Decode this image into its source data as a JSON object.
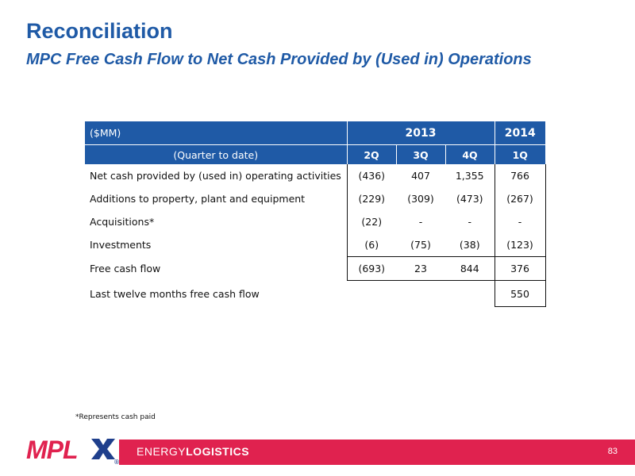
{
  "header": {
    "title": "Reconciliation",
    "subtitle": "MPC Free Cash Flow to Net Cash Provided by (Used in) Operations"
  },
  "table": {
    "unit_label": "($MM)",
    "years": [
      "2013",
      "2014"
    ],
    "period_label": "(Quarter to date)",
    "quarters": [
      "2Q",
      "3Q",
      "4Q",
      "1Q"
    ],
    "rows": [
      {
        "label": "Net cash provided by (used in) operating activities",
        "values": [
          "(436)",
          "407",
          "1,355",
          "766"
        ]
      },
      {
        "label": "Additions to property, plant and equipment",
        "values": [
          "(229)",
          "(309)",
          "(473)",
          "(267)"
        ]
      },
      {
        "label": "Acquisitions*",
        "values": [
          "(22)",
          "-",
          "-",
          "-"
        ]
      },
      {
        "label": "Investments",
        "values": [
          "(6)",
          "(75)",
          "(38)",
          "(123)"
        ]
      },
      {
        "label": "Free cash flow",
        "values": [
          "(693)",
          "23",
          "844",
          "376"
        ]
      }
    ],
    "ltm": {
      "label": "Last twelve months free cash flow",
      "value": "550"
    }
  },
  "footnote": "*Represents cash paid",
  "footer": {
    "brand_light": "ENERGY",
    "brand_bold": "LOGISTICS",
    "page_number": "83",
    "logo_text": "MPLX",
    "registered_mark": "®"
  },
  "colors": {
    "accent_blue": "#1f5aa6",
    "footer_red": "#e0224f",
    "logo_red": "#e0224f",
    "logo_blue": "#1f3f8c"
  }
}
